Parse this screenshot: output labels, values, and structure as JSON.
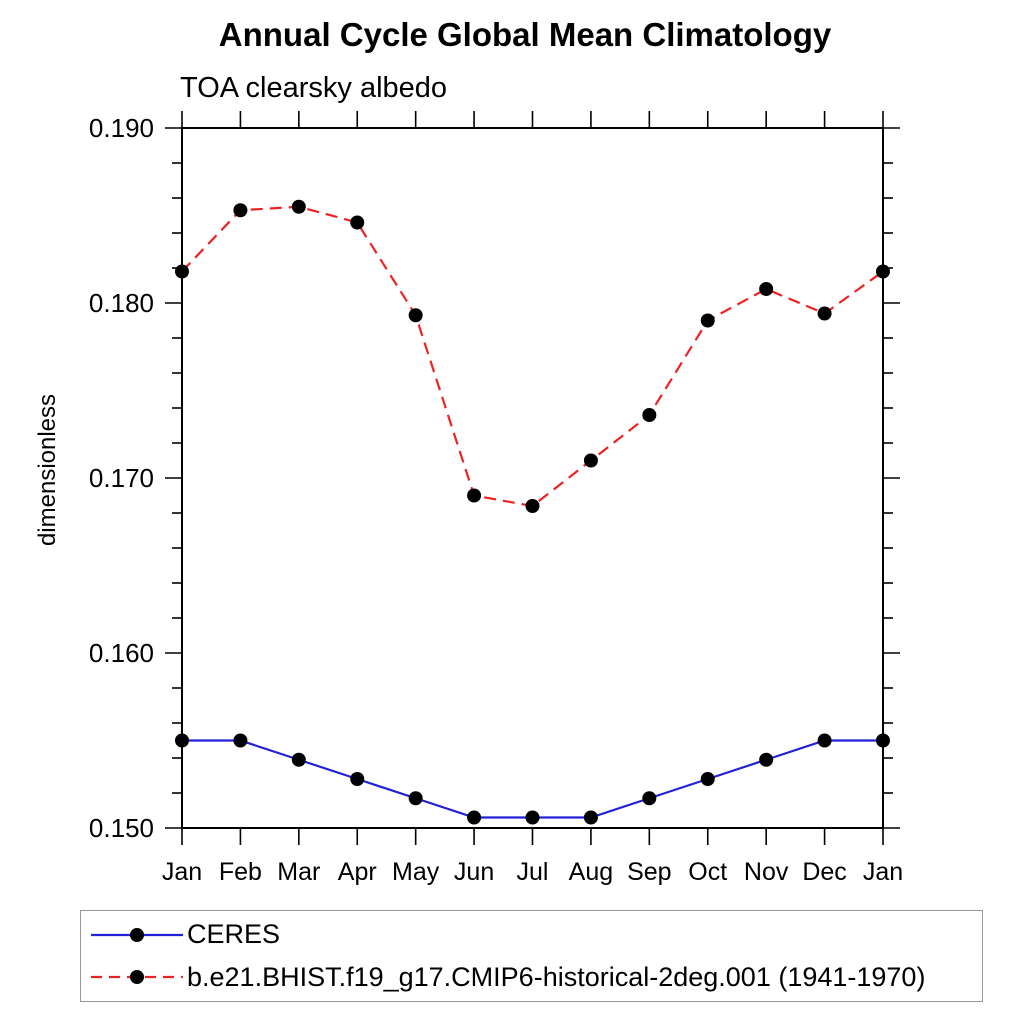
{
  "chart_data": {
    "type": "line",
    "title": "Annual Cycle Global Mean Climatology",
    "subtitle": "TOA clearsky albedo",
    "ylabel": "dimensionless",
    "categories": [
      "Jan",
      "Feb",
      "Mar",
      "Apr",
      "May",
      "Jun",
      "Jul",
      "Aug",
      "Sep",
      "Oct",
      "Nov",
      "Dec",
      "Jan"
    ],
    "series": [
      {
        "name": "CERES",
        "line_color": "#2121d6",
        "line_style": "solid",
        "marker": "circle",
        "marker_color": "#000000",
        "values": [
          0.155,
          0.155,
          0.1539,
          0.1528,
          0.1517,
          0.1506,
          0.1506,
          0.1506,
          0.1517,
          0.1528,
          0.1539,
          0.155,
          0.155
        ]
      },
      {
        "name": "b.e21.BHIST.f19_g17.CMIP6-historical-2deg.001 (1941-1970)",
        "line_color": "#ee2222",
        "line_style": "dashed",
        "marker": "circle",
        "marker_color": "#000000",
        "values": [
          0.1818,
          0.1853,
          0.1855,
          0.1846,
          0.1793,
          0.169,
          0.1684,
          0.171,
          0.1736,
          0.179,
          0.1808,
          0.1794,
          0.1818
        ]
      }
    ],
    "ylim": [
      0.15,
      0.19
    ],
    "ytick_major_step": 0.01,
    "ytick_minor_step": 0.002,
    "ytick_labels": [
      "0.150",
      "0.160",
      "0.170",
      "0.180",
      "0.190"
    ],
    "grid": false,
    "legend_position": "bottom-left",
    "axis_color": "#000000",
    "background_color": "#ffffff"
  }
}
